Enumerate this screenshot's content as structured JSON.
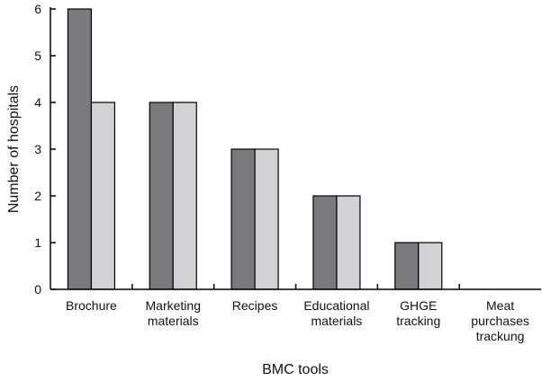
{
  "chart_data": {
    "type": "bar",
    "x_label": "BMC tools",
    "y_label": "Number of hospitals",
    "categories": [
      "Brochure",
      "Marketing\nmaterials",
      "Recipes",
      "Educational\nmaterials",
      "GHGE\ntracking",
      "Meat\npurchases\ntrackung"
    ],
    "series": [
      {
        "color": "#7a7a7c",
        "values": [
          6,
          4,
          3,
          2,
          1,
          0
        ]
      },
      {
        "color": "#d2d2d4",
        "values": [
          4,
          4,
          3,
          2,
          1,
          0
        ]
      }
    ],
    "ylim": [
      0,
      6
    ],
    "yticks": [
      0,
      1,
      2,
      3,
      4,
      5,
      6
    ]
  }
}
